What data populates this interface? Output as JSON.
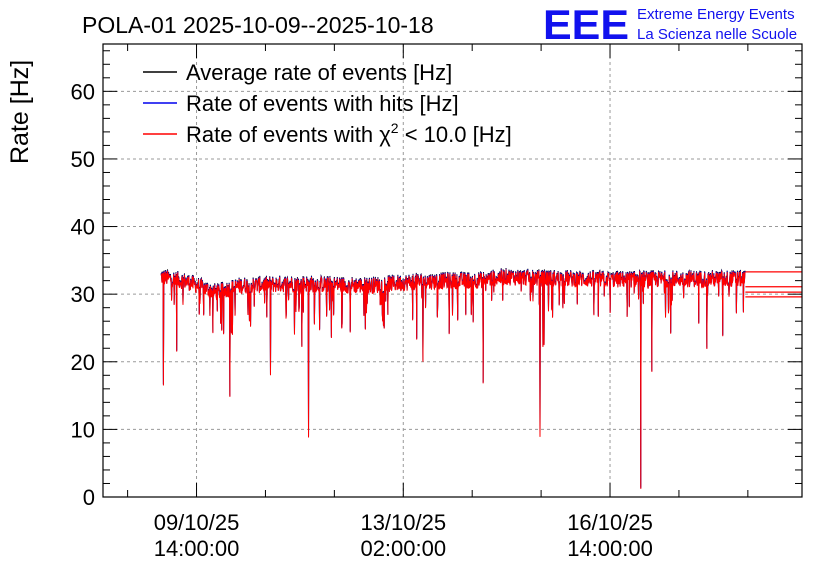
{
  "chart_data": {
    "type": "line",
    "title": "POLA-01 2025-10-09--2025-10-18",
    "ylabel": "Rate [Hz]",
    "xlabel": "",
    "ylim": [
      0,
      67
    ],
    "y_ticks": [
      0,
      10,
      20,
      30,
      40,
      50,
      60
    ],
    "x_ticks": [
      {
        "t": 0,
        "line1": "09/10/25",
        "line2": "14:00:00"
      },
      {
        "t": 84,
        "line1": "13/10/25",
        "line2": "02:00:00"
      },
      {
        "t": 168,
        "line1": "16/10/25",
        "line2": "14:00:00"
      }
    ],
    "xlim_hours": [
      -38,
      246
    ],
    "data_range_hours": [
      -14.5,
      223
    ],
    "grid": true,
    "legend_position": "top-left",
    "series": [
      {
        "name": "Average rate of events [Hz]",
        "color": "#000000",
        "trend": [
          [
            -14.5,
            32.5
          ],
          [
            -4,
            31.8
          ],
          [
            8,
            30.2
          ],
          [
            18,
            31.2
          ],
          [
            40,
            31.5
          ],
          [
            70,
            31.2
          ],
          [
            90,
            31.8
          ],
          [
            115,
            32.0
          ],
          [
            125,
            32.5
          ],
          [
            140,
            32.3
          ],
          [
            170,
            32.1
          ],
          [
            200,
            32.2
          ],
          [
            223,
            32.2
          ]
        ],
        "noise_amplitude": 1.2,
        "dips": [
          {
            "t": -13.5,
            "value": 16.5
          },
          {
            "t": 13.5,
            "value": 14.8
          },
          {
            "t": 45.5,
            "value": 8.8
          },
          {
            "t": 116.5,
            "value": 16.8
          },
          {
            "t": 139.5,
            "value": 8.9
          },
          {
            "t": 180.5,
            "value": 1.2
          },
          {
            "t": 185,
            "value": 18.5
          },
          {
            "t": 30,
            "value": 18
          },
          {
            "t": -8,
            "value": 21.5
          },
          {
            "t": 92,
            "value": 20
          }
        ],
        "flat_tail": [
          33.3,
          30.3,
          31.1,
          29.6
        ]
      },
      {
        "name": "Rate of events with hits [Hz]",
        "color": "#0000ee"
      },
      {
        "name": "Rate of events with χ² < 10.0 [Hz]",
        "color": "#ff0000"
      }
    ]
  },
  "legend": [
    {
      "text": "Average rate of events [Hz]",
      "color": "#000000"
    },
    {
      "text": "Rate of events with hits [Hz]",
      "color": "#0000ee"
    },
    {
      "prefix": "Rate of events with ",
      "chi": "χ",
      "sup": "2",
      "suffix": " < 10.0 [Hz]",
      "color": "#ff0000"
    }
  ],
  "logo": {
    "letters": "EEE",
    "line1": "Extreme Energy Events",
    "line2": "La Scienza nelle Scuole",
    "color": "#1111ee"
  }
}
